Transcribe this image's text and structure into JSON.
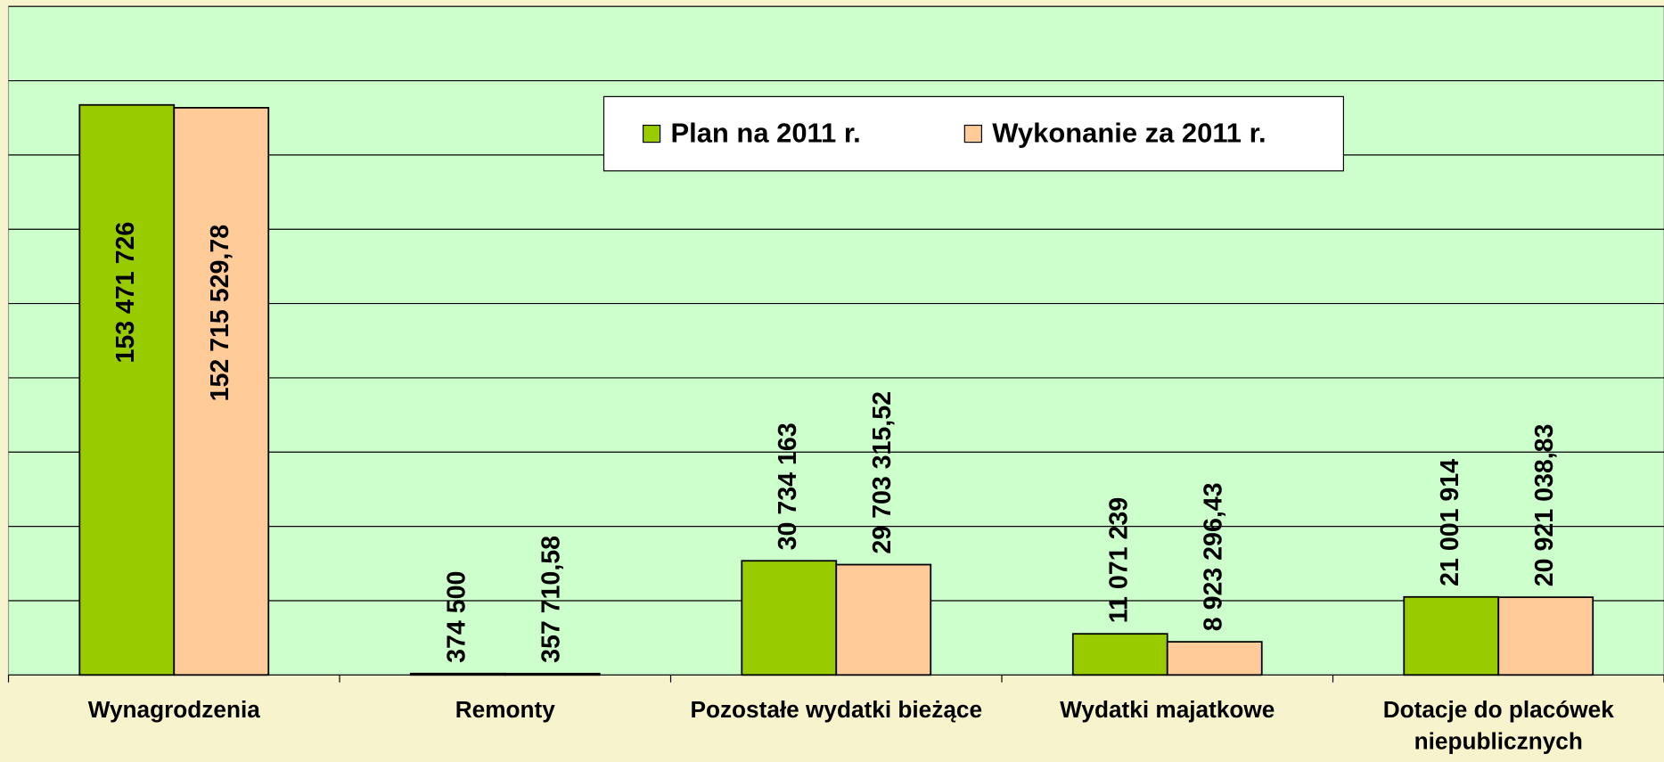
{
  "chart_data": {
    "type": "bar",
    "categories": [
      "Wynagrodzenia",
      "Remonty",
      "Pozostałe wydatki bieżące",
      "Wydatki majatkowe",
      "Dotacje do placówek niepublicznych"
    ],
    "series": [
      {
        "name": "Plan na 2011 r.",
        "color": "#99cc00",
        "values": [
          153471726,
          374500,
          30734163,
          11071239,
          21001914
        ],
        "value_labels": [
          "153 471 726",
          "374 500",
          "30 734 163",
          "11 071 239",
          "21 001 914"
        ]
      },
      {
        "name": "Wykonanie za 2011 r.",
        "color": "#ffcc99",
        "values": [
          152715529.78,
          357710.58,
          29703315.52,
          8923296.43,
          20921038.83
        ],
        "value_labels": [
          "152 715 529,78",
          "357 710,58",
          "29 703 315,52",
          "8 923 296,43",
          "20 921 038,83"
        ]
      }
    ],
    "ylim": [
      0,
      180000000
    ],
    "yticks": [
      0,
      20000000,
      40000000,
      60000000,
      80000000,
      100000000,
      120000000,
      140000000,
      160000000,
      180000000
    ],
    "grid": true
  }
}
